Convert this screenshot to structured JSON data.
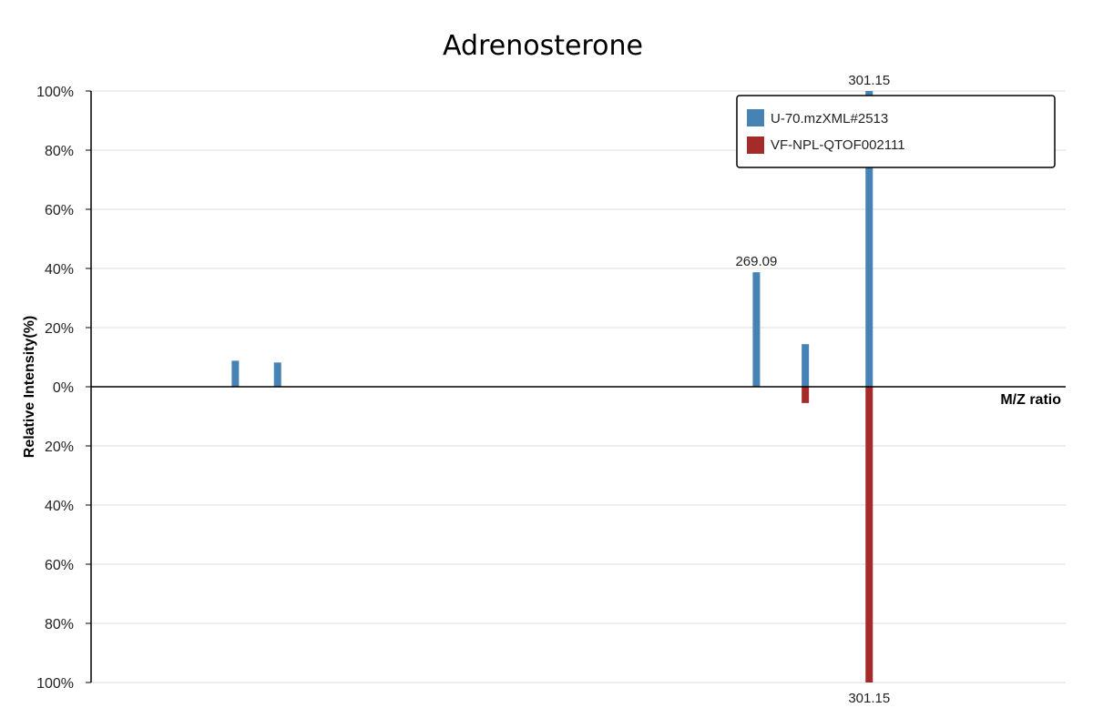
{
  "chart_data": {
    "type": "bar",
    "title": "Adrenosterone",
    "xlabel": "M/Z ratio",
    "ylabel": "Relative Intensity(%)",
    "ylim": [
      -100,
      100
    ],
    "y_ticks": [
      "100%",
      "80%",
      "60%",
      "40%",
      "20%",
      "0%",
      "20%",
      "40%",
      "60%",
      "80%",
      "100%"
    ],
    "grid": true,
    "legend_position": "top-right",
    "series": [
      {
        "name": "U-70.mzXML#2513",
        "color": "#4682b4",
        "direction": "up",
        "peaks": [
          {
            "mz": 121.0,
            "intensity": 8.8
          },
          {
            "mz": 133.0,
            "intensity": 8.2
          },
          {
            "mz": 269.09,
            "intensity": 38.7,
            "label": "269.09"
          },
          {
            "mz": 283.0,
            "intensity": 14.4
          },
          {
            "mz": 301.15,
            "intensity": 100,
            "label": "301.15"
          }
        ]
      },
      {
        "name": "VF-NPL-QTOF002111",
        "color": "#a52a2a",
        "direction": "down",
        "peaks": [
          {
            "mz": 283.0,
            "intensity": 5.5
          },
          {
            "mz": 301.15,
            "intensity": 100,
            "label": "301.15"
          }
        ]
      }
    ]
  }
}
